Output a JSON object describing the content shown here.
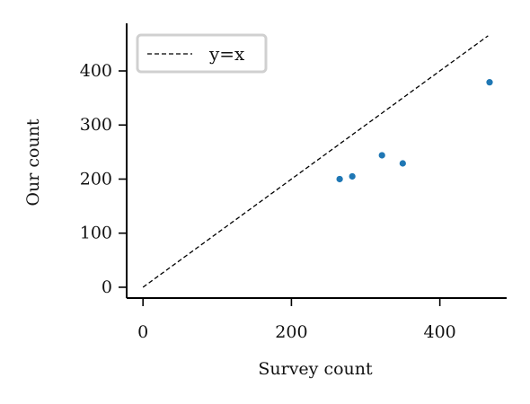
{
  "chart_data": {
    "type": "scatter",
    "xlabel": "Survey count",
    "ylabel": "Our count",
    "xlim": [
      -22,
      490
    ],
    "ylim": [
      -20,
      488
    ],
    "xticks": [
      0,
      200,
      400
    ],
    "xtick_labels": [
      "0",
      "200",
      "400"
    ],
    "yticks": [
      0,
      100,
      200,
      300,
      400
    ],
    "ytick_labels": [
      "0",
      "100",
      "200",
      "300",
      "400"
    ],
    "grid": false,
    "legend": {
      "placement": "top-left",
      "entries": [
        {
          "label": "y=x",
          "style": "dashed",
          "color": "#000000"
        }
      ]
    },
    "series": [
      {
        "color": "#1f77b4",
        "points": [
          {
            "x": 265,
            "y": 200
          },
          {
            "x": 282,
            "y": 205
          },
          {
            "x": 322,
            "y": 244
          },
          {
            "x": 350,
            "y": 229
          },
          {
            "x": 467,
            "y": 379
          }
        ]
      }
    ],
    "reference_line": {
      "from": 0,
      "to": 465
    }
  }
}
